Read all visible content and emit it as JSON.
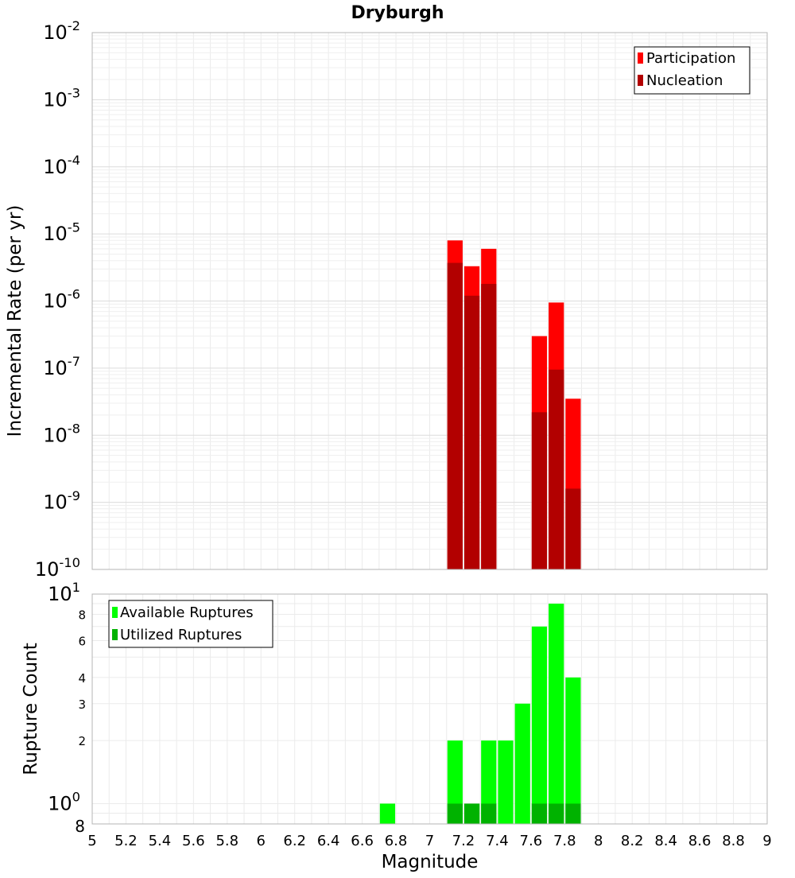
{
  "chart_data": [
    {
      "type": "bar",
      "title": "Dryburgh",
      "xlabel": "",
      "ylabel": "Incremental Rate (per yr)",
      "xlim": [
        5,
        9
      ],
      "ylim": [
        1e-10,
        0.01
      ],
      "y_scale": "log",
      "bin_width": 0.1,
      "grid": true,
      "legend_position": "top-right",
      "y_ticks": [
        {
          "base": "10",
          "exp": "-10",
          "value": 1e-10
        },
        {
          "base": "10",
          "exp": "-9",
          "value": 1e-09
        },
        {
          "base": "10",
          "exp": "-8",
          "value": 1e-08
        },
        {
          "base": "10",
          "exp": "-7",
          "value": 1e-07
        },
        {
          "base": "10",
          "exp": "-6",
          "value": 1e-06
        },
        {
          "base": "10",
          "exp": "-5",
          "value": 1e-05
        },
        {
          "base": "10",
          "exp": "-4",
          "value": 0.0001
        },
        {
          "base": "10",
          "exp": "-3",
          "value": 0.001
        },
        {
          "base": "10",
          "exp": "-2",
          "value": 0.01
        }
      ],
      "series": [
        {
          "name": "Participation",
          "color": "#ff0000",
          "x": [
            7.15,
            7.25,
            7.35,
            7.65,
            7.75,
            7.85
          ],
          "values": [
            8e-06,
            3.3e-06,
            6e-06,
            3e-07,
            9.5e-07,
            3.5e-08
          ]
        },
        {
          "name": "Nucleation",
          "color": "#b20000",
          "x": [
            7.15,
            7.25,
            7.35,
            7.65,
            7.75,
            7.85
          ],
          "values": [
            3.7e-06,
            1.2e-06,
            1.8e-06,
            2.2e-08,
            9.5e-08,
            1.6e-09
          ]
        }
      ]
    },
    {
      "type": "bar",
      "title": "",
      "xlabel": "Magnitude",
      "ylabel": "Rupture Count",
      "xlim": [
        5,
        9
      ],
      "ylim": [
        0.8,
        10
      ],
      "y_scale": "log",
      "bin_width": 0.1,
      "grid": true,
      "legend_position": "top-left",
      "x_ticks": [
        "5",
        "5.2",
        "5.4",
        "5.6",
        "5.8",
        "6",
        "6.2",
        "6.4",
        "6.6",
        "6.8",
        "7",
        "7.2",
        "7.4",
        "7.6",
        "7.8",
        "8",
        "8.2",
        "8.4",
        "8.6",
        "8.8",
        "9"
      ],
      "y_major_ticks": [
        {
          "base": "10",
          "exp": "0",
          "value": 1
        },
        {
          "base": "10",
          "exp": "1",
          "value": 10
        }
      ],
      "y_minor_ticks": [
        {
          "label": "8",
          "value": 0.8
        },
        {
          "label": "2",
          "value": 2
        },
        {
          "label": "3",
          "value": 3
        },
        {
          "label": "4",
          "value": 4
        },
        {
          "label": "6",
          "value": 6
        },
        {
          "label": "8",
          "value": 8
        }
      ],
      "series": [
        {
          "name": "Available Ruptures",
          "color": "#00ff00",
          "x": [
            6.75,
            7.15,
            7.25,
            7.35,
            7.45,
            7.55,
            7.65,
            7.75,
            7.85
          ],
          "values": [
            1,
            2,
            1,
            2,
            2,
            3,
            7,
            9,
            4
          ]
        },
        {
          "name": "Utilized Ruptures",
          "color": "#00b200",
          "x": [
            7.15,
            7.25,
            7.35,
            7.65,
            7.75,
            7.85
          ],
          "values": [
            1,
            1,
            1,
            1,
            1,
            1
          ]
        }
      ]
    }
  ]
}
